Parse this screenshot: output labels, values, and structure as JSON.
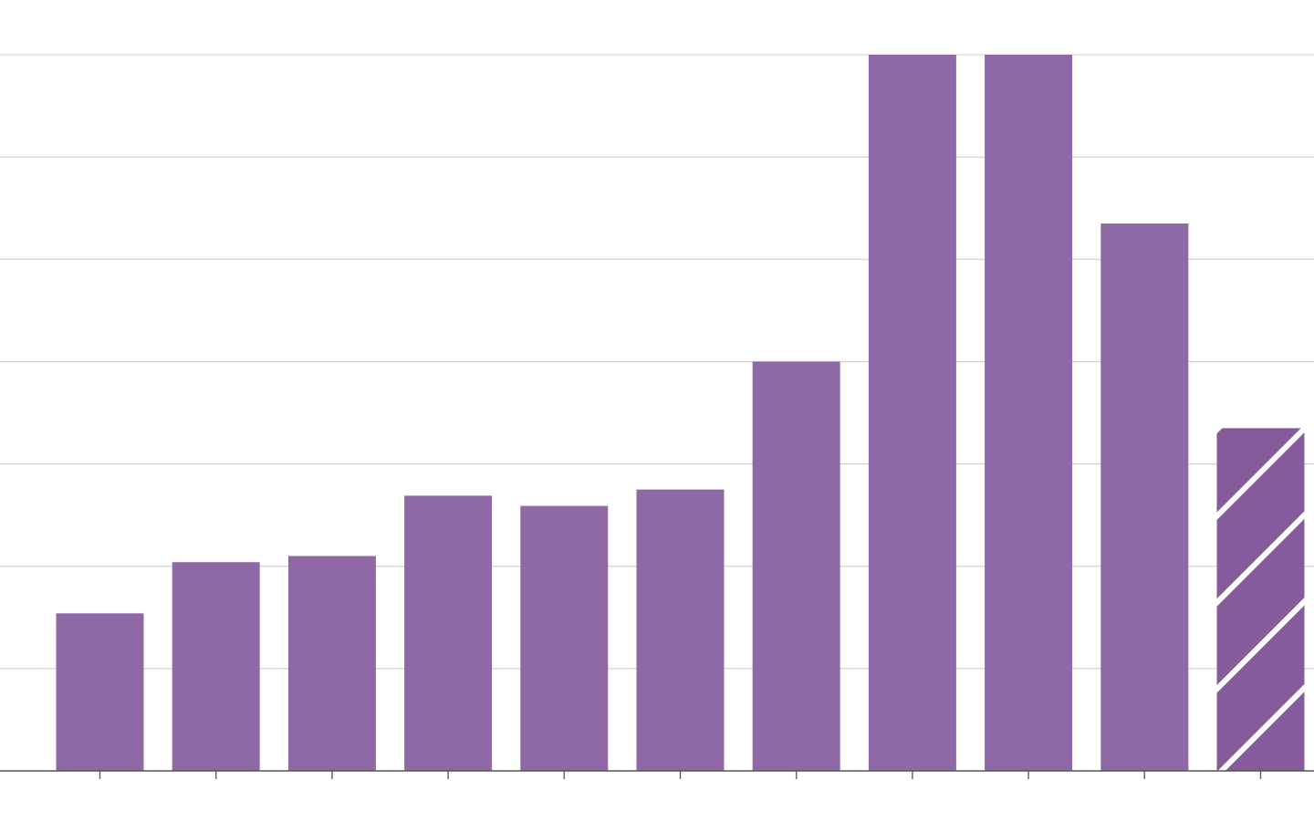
{
  "chart_data": {
    "type": "bar",
    "categories": [
      null,
      null,
      null,
      null,
      null,
      null,
      null,
      null,
      null,
      null,
      null
    ],
    "values": [
      1.54,
      2.04,
      2.1,
      2.69,
      2.59,
      2.75,
      4.0,
      7.0,
      7.0,
      5.35,
      3.35
    ],
    "patterns": [
      "solid",
      "solid",
      "solid",
      "solid",
      "solid",
      "solid",
      "solid",
      "solid",
      "solid",
      "solid",
      "hatch"
    ],
    "color": "#8e69a5",
    "hatch_color": "#855b9c",
    "ylim": [
      0,
      7
    ],
    "yticks": [
      0,
      1,
      2,
      3,
      4,
      5,
      6,
      7
    ],
    "grid": true
  }
}
